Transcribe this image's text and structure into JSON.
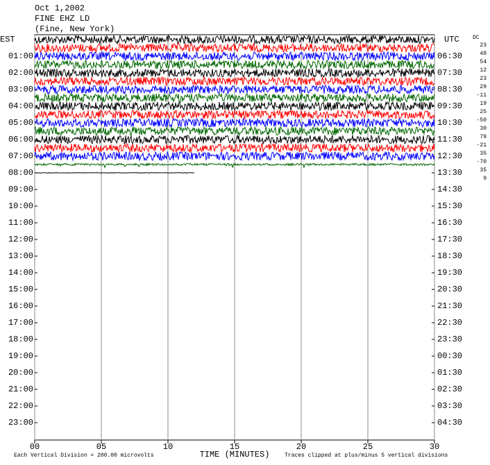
{
  "chart_data": {
    "type": "helicorder",
    "title_lines": [
      "Oct 1,2002",
      "FINE EHZ LD",
      "(Fine, New York)"
    ],
    "left_title": "EST",
    "right_title": "UTC",
    "left_labels": [
      "01:00",
      "02:00",
      "03:00",
      "04:00",
      "05:00",
      "06:00",
      "07:00",
      "08:00",
      "09:00",
      "10:00",
      "11:00",
      "12:00",
      "13:00",
      "14:00",
      "15:00",
      "16:00",
      "17:00",
      "18:00",
      "19:00",
      "20:00",
      "21:00",
      "22:00",
      "23:00"
    ],
    "right_labels": [
      "06:30",
      "07:30",
      "08:30",
      "09:30",
      "10:30",
      "11:30",
      "12:30",
      "13:30",
      "14:30",
      "15:30",
      "16:30",
      "17:30",
      "18:30",
      "19:30",
      "20:30",
      "21:30",
      "22:30",
      "23:30",
      "00:30",
      "01:30",
      "02:30",
      "03:30",
      "04:30"
    ],
    "dc_title": "DC",
    "trace_dc": [
      23,
      48,
      54,
      12,
      23,
      29,
      -11,
      19,
      25,
      -50,
      30,
      79,
      -21,
      35,
      -70,
      35,
      9
    ],
    "trace_end_minutes": [
      30,
      30,
      30,
      30,
      30,
      30,
      30,
      30,
      30,
      30,
      30,
      30,
      30,
      30,
      30,
      30,
      12
    ],
    "trace_colors": [
      "#000000",
      "#ff0000",
      "#0000ff",
      "#006600"
    ],
    "xlabel": "TIME (MINUTES)",
    "xlim": [
      0,
      30
    ],
    "xticks": [
      {
        "value": 0,
        "label": "00"
      },
      {
        "value": 5,
        "label": "05"
      },
      10,
      15,
      20,
      25,
      30
    ],
    "note_left": "Each Vertical Division =  200.00 microvolts",
    "note_right": "Traces clipped at plus/minus 5 vertical divisions"
  }
}
